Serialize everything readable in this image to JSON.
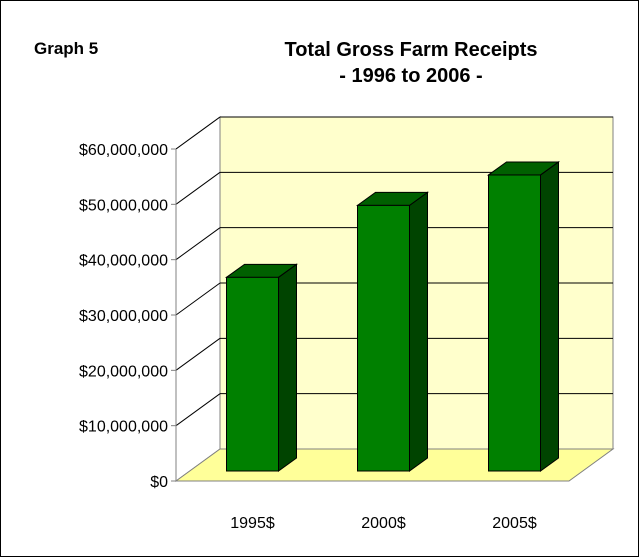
{
  "header": {
    "graph_label": "Graph 5",
    "title_line1": "Total Gross Farm Receipts",
    "title_line2": "- 1996 to 2006 -"
  },
  "chart_data": {
    "type": "bar",
    "title": "Total Gross Farm Receipts - 1996 to 2006 -",
    "xlabel": "",
    "ylabel": "",
    "categories": [
      "1995$",
      "2000$",
      "2005$"
    ],
    "values": [
      35000000,
      48000000,
      53500000
    ],
    "ylim": [
      0,
      60000000
    ],
    "y_ticks": [
      0,
      10000000,
      20000000,
      30000000,
      40000000,
      50000000,
      60000000
    ],
    "y_tick_labels": [
      "$0",
      "$10,000,000",
      "$20,000,000",
      "$30,000,000",
      "$40,000,000",
      "$50,000,000",
      "$60,000,000"
    ],
    "grid": true,
    "legend": "none",
    "style": "3d-column"
  },
  "colors": {
    "bar_front": "#008000",
    "bar_side": "#004400",
    "bar_top": "#006000",
    "wall": "#FFFFCC",
    "floor": "#FFFF99",
    "grid": "#000000"
  }
}
